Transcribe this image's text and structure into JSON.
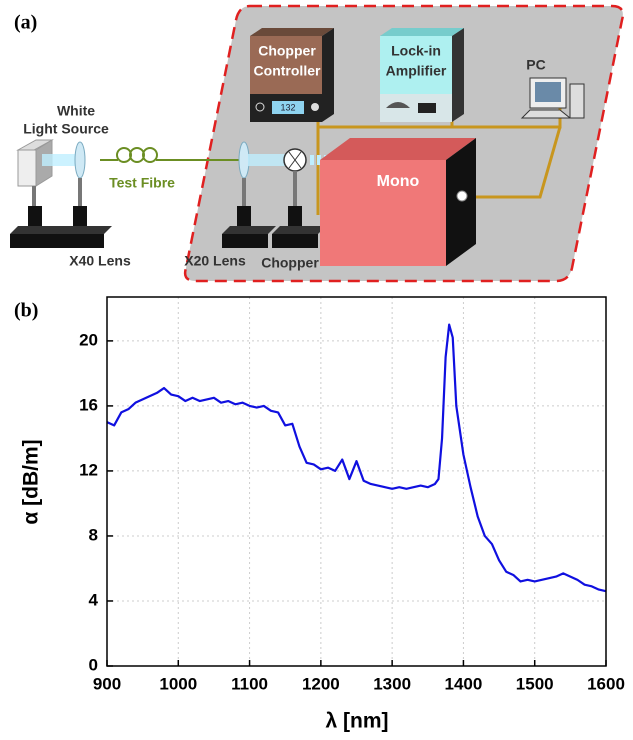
{
  "panel_labels": [
    "(a)",
    "(b)"
  ],
  "diagram": {
    "white_light_source": [
      "White",
      "Light Source"
    ],
    "test_fibre": "Test Fibre",
    "x40_lens": "X40 Lens",
    "x20_lens": "X20 Lens",
    "chopper": "Chopper",
    "chopper_controller": [
      "Chopper",
      "Controller"
    ],
    "controller_display": "132",
    "lock_in_amplifier": [
      "Lock-in",
      "Amplifier"
    ],
    "pc": "PC",
    "mono": "Mono"
  },
  "chart_data": {
    "type": "line",
    "x_label": "λ [nm]",
    "y_label": "α [dB/m]",
    "x": [
      900,
      910,
      920,
      930,
      940,
      950,
      960,
      970,
      980,
      990,
      1000,
      1010,
      1020,
      1030,
      1040,
      1050,
      1060,
      1070,
      1080,
      1090,
      1100,
      1110,
      1120,
      1130,
      1140,
      1150,
      1160,
      1170,
      1180,
      1190,
      1200,
      1210,
      1220,
      1230,
      1240,
      1250,
      1260,
      1270,
      1280,
      1290,
      1300,
      1310,
      1320,
      1330,
      1340,
      1350,
      1360,
      1365,
      1370,
      1375,
      1380,
      1385,
      1390,
      1400,
      1410,
      1420,
      1430,
      1440,
      1450,
      1460,
      1470,
      1480,
      1490,
      1500,
      1510,
      1520,
      1530,
      1540,
      1550,
      1560,
      1570,
      1580,
      1590,
      1600
    ],
    "values": [
      15.0,
      14.8,
      15.6,
      15.8,
      16.2,
      16.4,
      16.6,
      16.8,
      17.1,
      16.7,
      16.6,
      16.3,
      16.5,
      16.3,
      16.4,
      16.5,
      16.2,
      16.3,
      16.1,
      16.2,
      16.0,
      15.9,
      16.0,
      15.7,
      15.6,
      14.8,
      14.9,
      13.5,
      12.5,
      12.4,
      12.1,
      12.2,
      12.0,
      12.7,
      11.5,
      12.6,
      11.4,
      11.2,
      11.1,
      11.0,
      10.9,
      11.0,
      10.9,
      11.0,
      11.1,
      11.0,
      11.2,
      11.5,
      14.0,
      19.0,
      21.0,
      20.2,
      16.0,
      13.0,
      11.0,
      9.2,
      8.0,
      7.5,
      6.5,
      5.8,
      5.6,
      5.2,
      5.3,
      5.2,
      5.3,
      5.4,
      5.5,
      5.7,
      5.5,
      5.3,
      5.0,
      4.9,
      4.7,
      4.6
    ],
    "color": "#1010e0",
    "xlim": [
      900,
      1600
    ],
    "xticks": [
      900,
      1000,
      1100,
      1200,
      1300,
      1400,
      1500,
      1600
    ],
    "ylim": [
      0,
      22.7
    ],
    "yticks": [
      0,
      4,
      8,
      12,
      16,
      20
    ],
    "grid": true
  }
}
